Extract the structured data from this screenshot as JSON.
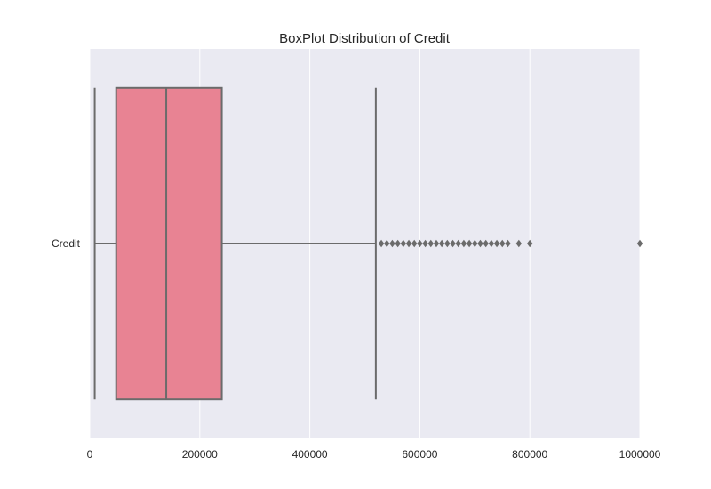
{
  "chart_data": {
    "type": "box",
    "title": "BoxPlot Distribution of Credit",
    "xlabel": "",
    "ylabel": "",
    "orientation": "horizontal",
    "xlim": [
      0,
      1000000
    ],
    "x_ticks": [
      0,
      200000,
      400000,
      600000,
      800000,
      1000000
    ],
    "x_tick_labels": [
      "0",
      "200000",
      "400000",
      "600000",
      "800000",
      "1000000"
    ],
    "grid": true,
    "categories": [
      "Credit"
    ],
    "series": [
      {
        "category": "Credit",
        "whisker_low": 9000,
        "q1": 48000,
        "median": 139000,
        "q3": 240000,
        "whisker_high": 520000,
        "outliers": [
          530000,
          540000,
          550000,
          560000,
          570000,
          580000,
          590000,
          600000,
          610000,
          620000,
          630000,
          640000,
          650000,
          660000,
          670000,
          680000,
          690000,
          700000,
          710000,
          720000,
          730000,
          740000,
          750000,
          760000,
          780000,
          800000,
          1000000
        ]
      }
    ],
    "colors": {
      "box_fill": "#e88393",
      "line": "#6b6b6b",
      "plot_bg": "#eaeaf2",
      "grid": "#ffffff"
    }
  }
}
